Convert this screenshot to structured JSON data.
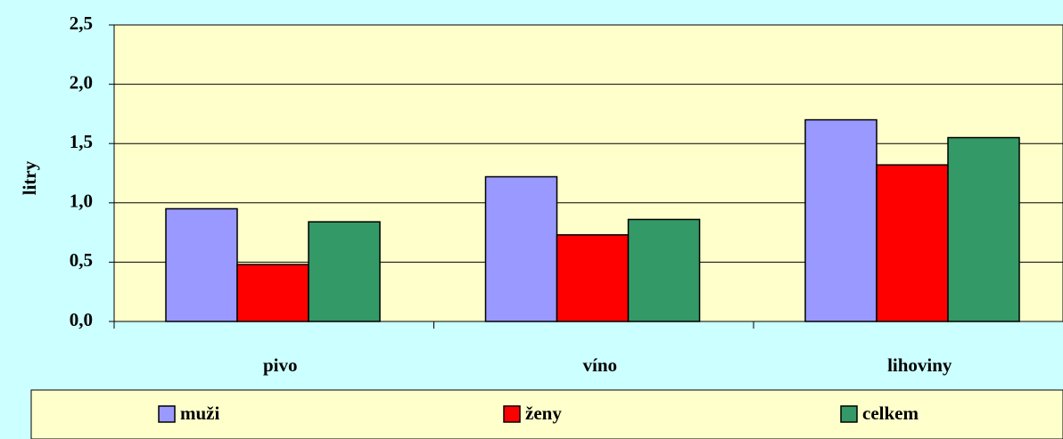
{
  "chart_data": {
    "type": "bar",
    "y_label": "litry",
    "categories": [
      "pivo",
      "víno",
      "lihoviny"
    ],
    "series": [
      {
        "name": "muži",
        "color": "#9999ff",
        "values": [
          0.95,
          1.22,
          1.7
        ]
      },
      {
        "name": "ženy",
        "color": "#ff0000",
        "values": [
          0.48,
          0.73,
          1.32
        ]
      },
      {
        "name": "celkem",
        "color": "#339966",
        "values": [
          0.84,
          0.86,
          1.55
        ]
      }
    ],
    "ylim": [
      0,
      2.5
    ],
    "yticks": [
      {
        "value": 0,
        "label": "0,0"
      },
      {
        "value": 0.5,
        "label": "0,5"
      },
      {
        "value": 1,
        "label": "1,0"
      },
      {
        "value": 1.5,
        "label": "1,5"
      },
      {
        "value": 2,
        "label": "2,0"
      },
      {
        "value": 2.5,
        "label": "2,5"
      }
    ],
    "grid": true,
    "legend": "bottom"
  }
}
